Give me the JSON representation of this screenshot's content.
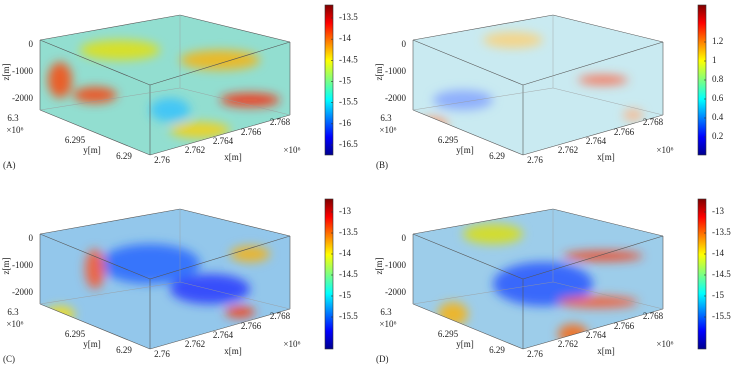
{
  "panels": [
    {
      "label": "(A)",
      "z_axis": {
        "label": "z[m]",
        "ticks": [
          0,
          -1000,
          -2000
        ]
      },
      "y_axis": {
        "label": "y[m]",
        "ticks": [
          6.3,
          6.295,
          6.29
        ],
        "exponent": "×10⁶"
      },
      "x_axis": {
        "label": "x[m]",
        "ticks": [
          2.76,
          2.762,
          2.764,
          2.766,
          2.768
        ],
        "exponent": "×10⁶"
      },
      "colorbar_ticks": [
        -13.5,
        -14,
        -14.5,
        -15,
        -15.5,
        -16,
        -16.5
      ]
    },
    {
      "label": "(B)",
      "z_axis": {
        "label": "z[m]",
        "ticks": [
          0,
          -1000,
          -2000
        ]
      },
      "y_axis": {
        "label": "y[m]",
        "ticks": [
          6.3,
          6.295,
          6.29
        ],
        "exponent": "×10⁶"
      },
      "x_axis": {
        "label": "x[m]",
        "ticks": [
          2.76,
          2.762,
          2.764,
          2.766,
          2.768
        ],
        "exponent": "×10⁶"
      },
      "colorbar_ticks": [
        1.2,
        1,
        0.8,
        0.6,
        0.4,
        0.2
      ]
    },
    {
      "label": "(C)",
      "z_axis": {
        "label": "z[m]",
        "ticks": [
          0,
          -1000,
          -2000
        ]
      },
      "y_axis": {
        "label": "y[m]",
        "ticks": [
          6.3,
          6.295,
          6.29
        ],
        "exponent": "×10⁶"
      },
      "x_axis": {
        "label": "x[m]",
        "ticks": [
          2.76,
          2.762,
          2.764,
          2.766,
          2.768
        ],
        "exponent": "×10⁶"
      },
      "colorbar_ticks": [
        -13,
        -13.5,
        -14,
        -14.5,
        -15,
        -15.5
      ]
    },
    {
      "label": "(D)",
      "z_axis": {
        "label": "z[m]",
        "ticks": [
          0,
          -1000,
          -2000
        ]
      },
      "y_axis": {
        "label": "y[m]",
        "ticks": [
          6.3,
          6.295,
          6.29
        ],
        "exponent": "×10⁶"
      },
      "x_axis": {
        "label": "x[m]",
        "ticks": [
          2.76,
          2.762,
          2.764,
          2.766,
          2.768
        ],
        "exponent": "×10⁶"
      },
      "colorbar_ticks": [
        -13,
        -13.5,
        -14,
        -14.5,
        -15,
        -15.5
      ]
    }
  ]
}
